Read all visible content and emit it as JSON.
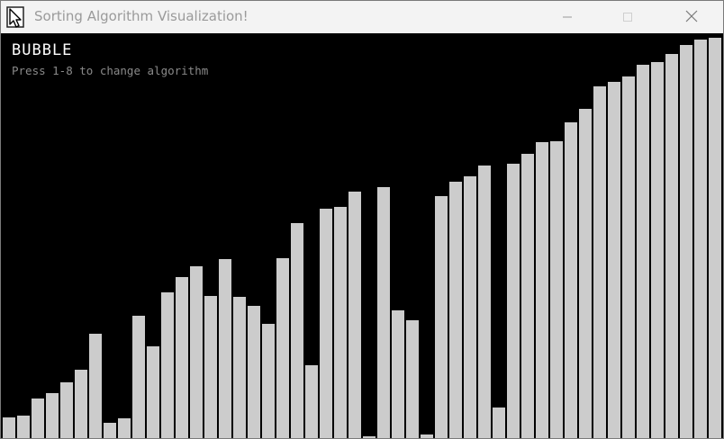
{
  "window": {
    "title": "Sorting Algorithm Visualization!",
    "icons": {
      "app": "cursor-app-icon",
      "minimize": "minimize-icon",
      "maximize": "maximize-icon",
      "close": "close-icon"
    }
  },
  "overlay": {
    "algorithm": "BUBBLE",
    "hint": "Press 1-8 to change algorithm"
  },
  "chart_data": {
    "type": "bar",
    "bar_color": "#cccccc",
    "background": "#000000",
    "values": [
      24,
      26,
      45,
      51,
      63,
      77,
      117,
      18,
      23,
      137,
      103,
      163,
      180,
      192,
      159,
      200,
      158,
      148,
      128,
      201,
      240,
      82,
      256,
      258,
      275,
      3,
      280,
      143,
      132,
      5,
      270,
      286,
      292,
      304,
      35,
      306,
      317,
      330,
      331,
      352,
      367,
      392,
      397,
      403,
      416,
      419,
      428,
      438,
      444,
      446
    ]
  }
}
